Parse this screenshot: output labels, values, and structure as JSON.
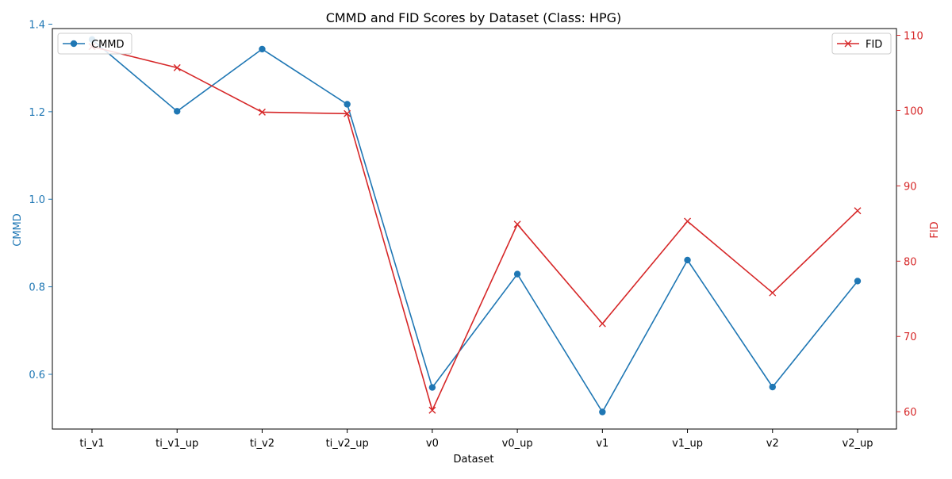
{
  "chart_data": {
    "type": "line",
    "title": "CMMD and FID Scores by Dataset (Class: HPG)",
    "xlabel": "Dataset",
    "categories": [
      "ti_v1",
      "ti_v1_up",
      "ti_v2",
      "ti_v2_up",
      "v0",
      "v0_up",
      "v1",
      "v1_up",
      "v2",
      "v2_up"
    ],
    "left_axis": {
      "label": "CMMD",
      "color": "#1f77b4",
      "ylim": [
        0.475,
        1.39
      ],
      "ticks": [
        0.6,
        0.8,
        1.0,
        1.2,
        1.4
      ],
      "tick_labels": [
        "0.6",
        "0.8",
        "1.0",
        "1.2",
        "1.4"
      ]
    },
    "right_axis": {
      "label": "FID",
      "color": "#d62728",
      "ylim": [
        57.7,
        110.9
      ],
      "ticks": [
        60,
        70,
        80,
        90,
        100,
        110
      ],
      "tick_labels": [
        "60",
        "70",
        "80",
        "90",
        "100",
        "110"
      ]
    },
    "series": [
      {
        "name": "CMMD",
        "axis": "left",
        "color": "#1f77b4",
        "marker": "circle",
        "values": [
          1.365,
          1.201,
          1.343,
          1.217,
          0.57,
          0.829,
          0.514,
          0.861,
          0.571,
          0.813
        ]
      },
      {
        "name": "FID",
        "axis": "right",
        "color": "#d62728",
        "marker": "x",
        "values": [
          108.5,
          105.7,
          99.8,
          99.6,
          60.2,
          84.9,
          71.7,
          85.3,
          75.8,
          86.7
        ]
      }
    ],
    "legends": [
      {
        "series": "CMMD",
        "placement": "upper-left"
      },
      {
        "series": "FID",
        "placement": "upper-right"
      }
    ],
    "grid": false
  }
}
